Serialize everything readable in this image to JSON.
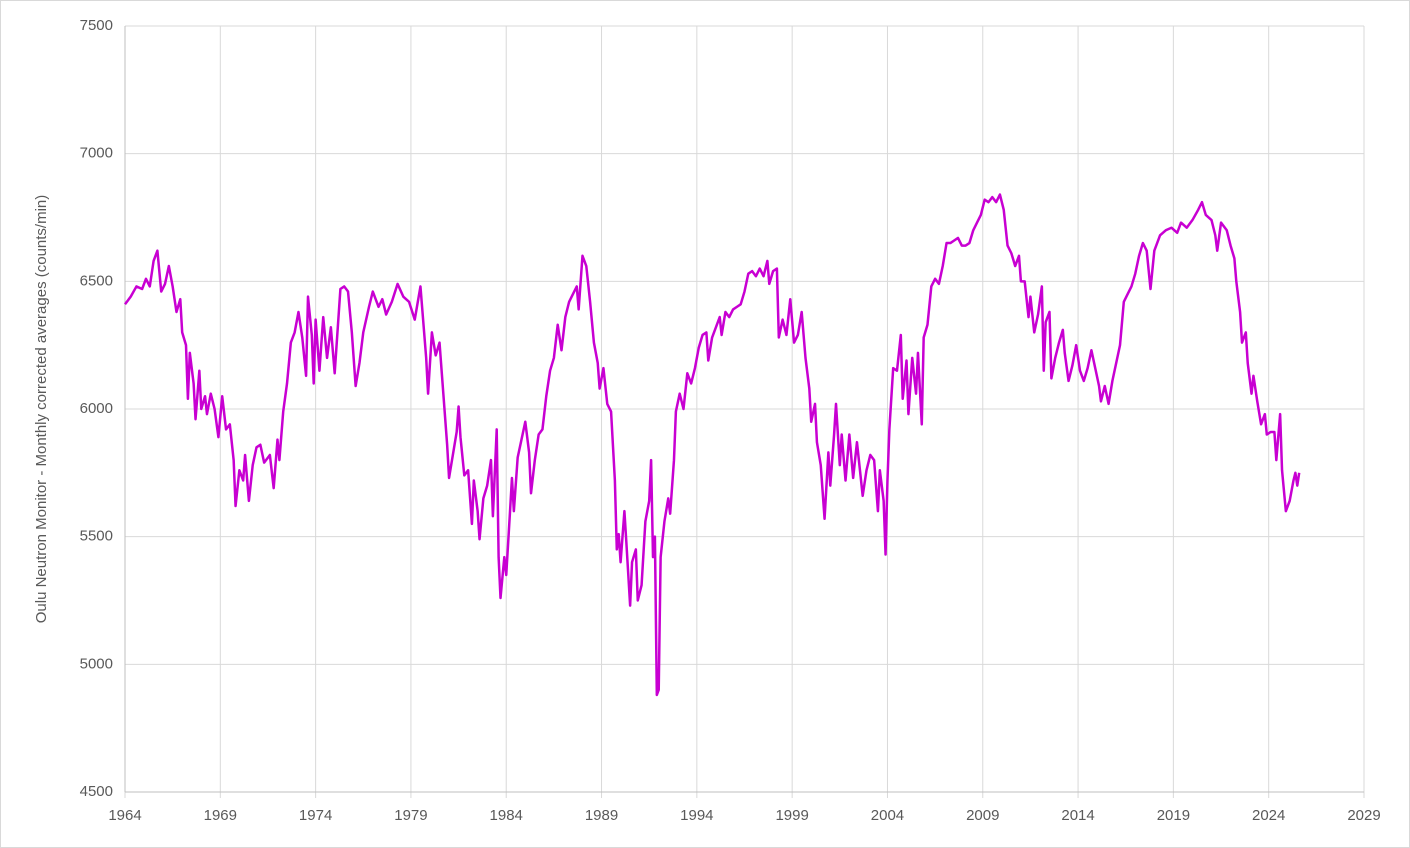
{
  "chart_data": {
    "type": "line",
    "y_label": "Oulu Neutron Monitor - Monthly corrected averages (counts/min)",
    "color": "#c800d2",
    "grid": true,
    "xlim": [
      1964,
      2029
    ],
    "xticks": [
      1964,
      1969,
      1974,
      1979,
      1984,
      1989,
      1994,
      1999,
      2004,
      2009,
      2014,
      2019,
      2024,
      2029
    ],
    "ylim": [
      4500,
      7500
    ],
    "yticks": [
      4500,
      5000,
      5500,
      6000,
      6500,
      7000,
      7500
    ],
    "x": [
      1964.0,
      1964.3,
      1964.6,
      1964.9,
      1965.1,
      1965.3,
      1965.5,
      1965.7,
      1965.9,
      1966.1,
      1966.3,
      1966.5,
      1966.7,
      1966.9,
      1967.0,
      1967.2,
      1967.3,
      1967.4,
      1967.6,
      1967.7,
      1967.9,
      1968.0,
      1968.2,
      1968.3,
      1968.5,
      1968.7,
      1968.9,
      1969.1,
      1969.3,
      1969.5,
      1969.7,
      1969.8,
      1970.0,
      1970.2,
      1970.3,
      1970.5,
      1970.7,
      1970.9,
      1971.1,
      1971.3,
      1971.6,
      1971.8,
      1972.0,
      1972.1,
      1972.3,
      1972.5,
      1972.7,
      1972.9,
      1973.1,
      1973.3,
      1973.5,
      1973.6,
      1973.8,
      1973.9,
      1974.0,
      1974.2,
      1974.4,
      1974.6,
      1974.8,
      1975.0,
      1975.3,
      1975.5,
      1975.7,
      1975.9,
      1976.1,
      1976.3,
      1976.5,
      1976.8,
      1977.0,
      1977.3,
      1977.5,
      1977.7,
      1978.0,
      1978.3,
      1978.6,
      1978.9,
      1979.2,
      1979.5,
      1979.8,
      1979.9,
      1980.1,
      1980.3,
      1980.5,
      1980.7,
      1980.9,
      1981.0,
      1981.2,
      1981.4,
      1981.5,
      1981.6,
      1981.8,
      1982.0,
      1982.2,
      1982.3,
      1982.5,
      1982.6,
      1982.8,
      1983.0,
      1983.2,
      1983.3,
      1983.5,
      1983.6,
      1983.7,
      1983.9,
      1984.0,
      1984.2,
      1984.3,
      1984.4,
      1984.6,
      1984.8,
      1985.0,
      1985.2,
      1985.3,
      1985.5,
      1985.7,
      1985.9,
      1986.1,
      1986.3,
      1986.5,
      1986.7,
      1986.9,
      1987.1,
      1987.3,
      1987.5,
      1987.7,
      1987.8,
      1988.0,
      1988.2,
      1988.4,
      1988.6,
      1988.8,
      1988.9,
      1989.1,
      1989.3,
      1989.5,
      1989.7,
      1989.8,
      1989.9,
      1990.0,
      1990.2,
      1990.3,
      1990.5,
      1990.6,
      1990.8,
      1990.9,
      1991.1,
      1991.3,
      1991.5,
      1991.6,
      1991.7,
      1991.8,
      1991.9,
      1992.0,
      1992.1,
      1992.3,
      1992.5,
      1992.6,
      1992.8,
      1992.9,
      1993.1,
      1993.3,
      1993.5,
      1993.7,
      1993.9,
      1994.1,
      1994.3,
      1994.5,
      1994.6,
      1994.8,
      1995.0,
      1995.2,
      1995.3,
      1995.5,
      1995.7,
      1995.9,
      1996.1,
      1996.3,
      1996.5,
      1996.7,
      1996.9,
      1997.1,
      1997.3,
      1997.5,
      1997.7,
      1997.8,
      1998.0,
      1998.2,
      1998.3,
      1998.5,
      1998.7,
      1998.9,
      1999.1,
      1999.3,
      1999.5,
      1999.7,
      1999.9,
      2000.0,
      2000.2,
      2000.3,
      2000.5,
      2000.7,
      2000.9,
      2001.0,
      2001.2,
      2001.3,
      2001.5,
      2001.6,
      2001.8,
      2002.0,
      2002.2,
      2002.4,
      2002.5,
      2002.7,
      2002.9,
      2003.1,
      2003.3,
      2003.5,
      2003.6,
      2003.8,
      2003.9,
      2004.0,
      2004.1,
      2004.3,
      2004.5,
      2004.7,
      2004.8,
      2005.0,
      2005.1,
      2005.3,
      2005.5,
      2005.6,
      2005.8,
      2005.9,
      2006.1,
      2006.3,
      2006.5,
      2006.7,
      2006.9,
      2007.1,
      2007.3,
      2007.5,
      2007.7,
      2007.9,
      2008.1,
      2008.3,
      2008.5,
      2008.7,
      2008.9,
      2009.1,
      2009.3,
      2009.5,
      2009.7,
      2009.9,
      2010.1,
      2010.3,
      2010.5,
      2010.7,
      2010.9,
      2011.0,
      2011.2,
      2011.4,
      2011.5,
      2011.7,
      2011.9,
      2012.1,
      2012.2,
      2012.3,
      2012.5,
      2012.6,
      2012.8,
      2013.0,
      2013.2,
      2013.3,
      2013.5,
      2013.7,
      2013.9,
      2014.1,
      2014.3,
      2014.5,
      2014.7,
      2014.9,
      2015.1,
      2015.2,
      2015.4,
      2015.6,
      2015.8,
      2016.0,
      2016.2,
      2016.4,
      2016.6,
      2016.8,
      2017.0,
      2017.2,
      2017.4,
      2017.6,
      2017.8,
      2018.0,
      2018.3,
      2018.6,
      2018.9,
      2019.2,
      2019.4,
      2019.7,
      2020.0,
      2020.3,
      2020.5,
      2020.7,
      2021.0,
      2021.2,
      2021.3,
      2021.5,
      2021.8,
      2022.0,
      2022.2,
      2022.3,
      2022.5,
      2022.6,
      2022.8,
      2022.9,
      2023.1,
      2023.2,
      2023.4,
      2023.6,
      2023.8,
      2023.9,
      2024.1,
      2024.3,
      2024.4,
      2024.6,
      2024.7,
      2024.9,
      2025.1,
      2025.3,
      2025.4,
      2025.5,
      2025.6
    ],
    "values": [
      6410,
      6440,
      6480,
      6470,
      6510,
      6480,
      6580,
      6620,
      6460,
      6490,
      6560,
      6480,
      6380,
      6430,
      6300,
      6250,
      6040,
      6220,
      6100,
      5960,
      6150,
      6000,
      6050,
      5980,
      6060,
      6000,
      5890,
      6050,
      5920,
      5940,
      5800,
      5620,
      5760,
      5720,
      5820,
      5640,
      5780,
      5850,
      5860,
      5790,
      5820,
      5690,
      5880,
      5800,
      5990,
      6100,
      6260,
      6300,
      6380,
      6280,
      6130,
      6440,
      6290,
      6100,
      6350,
      6150,
      6360,
      6200,
      6320,
      6140,
      6470,
      6480,
      6460,
      6300,
      6090,
      6180,
      6300,
      6400,
      6460,
      6400,
      6430,
      6370,
      6420,
      6490,
      6440,
      6420,
      6350,
      6480,
      6200,
      6060,
      6300,
      6210,
      6260,
      6060,
      5860,
      5730,
      5820,
      5910,
      6010,
      5890,
      5740,
      5760,
      5550,
      5720,
      5600,
      5490,
      5650,
      5700,
      5800,
      5580,
      5920,
      5420,
      5260,
      5420,
      5350,
      5600,
      5730,
      5600,
      5810,
      5880,
      5950,
      5830,
      5670,
      5800,
      5900,
      5920,
      6050,
      6150,
      6200,
      6330,
      6230,
      6360,
      6420,
      6450,
      6480,
      6390,
      6600,
      6560,
      6420,
      6260,
      6180,
      6080,
      6160,
      6020,
      5990,
      5720,
      5450,
      5510,
      5400,
      5600,
      5480,
      5230,
      5400,
      5450,
      5250,
      5310,
      5560,
      5640,
      5800,
      5420,
      5500,
      4880,
      4900,
      5420,
      5560,
      5650,
      5590,
      5800,
      5990,
      6060,
      6000,
      6140,
      6100,
      6160,
      6240,
      6290,
      6300,
      6190,
      6280,
      6320,
      6360,
      6290,
      6380,
      6360,
      6390,
      6400,
      6410,
      6460,
      6530,
      6540,
      6520,
      6550,
      6520,
      6580,
      6490,
      6540,
      6550,
      6280,
      6350,
      6290,
      6430,
      6260,
      6290,
      6380,
      6200,
      6080,
      5950,
      6020,
      5870,
      5780,
      5570,
      5830,
      5700,
      5900,
      6020,
      5780,
      5900,
      5720,
      5900,
      5730,
      5870,
      5800,
      5660,
      5760,
      5820,
      5800,
      5600,
      5760,
      5640,
      5430,
      5720,
      5920,
      6160,
      6150,
      6290,
      6040,
      6190,
      5980,
      6200,
      6060,
      6220,
      5940,
      6280,
      6330,
      6480,
      6510,
      6490,
      6560,
      6650,
      6650,
      6660,
      6670,
      6640,
      6640,
      6650,
      6700,
      6730,
      6760,
      6820,
      6810,
      6830,
      6810,
      6840,
      6780,
      6640,
      6610,
      6560,
      6600,
      6500,
      6500,
      6360,
      6440,
      6300,
      6370,
      6480,
      6150,
      6340,
      6380,
      6120,
      6200,
      6260,
      6310,
      6220,
      6110,
      6170,
      6250,
      6150,
      6110,
      6160,
      6230,
      6160,
      6090,
      6030,
      6090,
      6020,
      6110,
      6180,
      6250,
      6420,
      6450,
      6480,
      6530,
      6600,
      6650,
      6620,
      6470,
      6620,
      6680,
      6700,
      6710,
      6690,
      6730,
      6710,
      6740,
      6780,
      6810,
      6760,
      6740,
      6680,
      6620,
      6730,
      6700,
      6640,
      6590,
      6500,
      6380,
      6260,
      6300,
      6180,
      6060,
      6130,
      6030,
      5940,
      5980,
      5900,
      5910,
      5910,
      5800,
      5980,
      5760,
      5600,
      5640,
      5720,
      5750,
      5700,
      5750
    ]
  }
}
